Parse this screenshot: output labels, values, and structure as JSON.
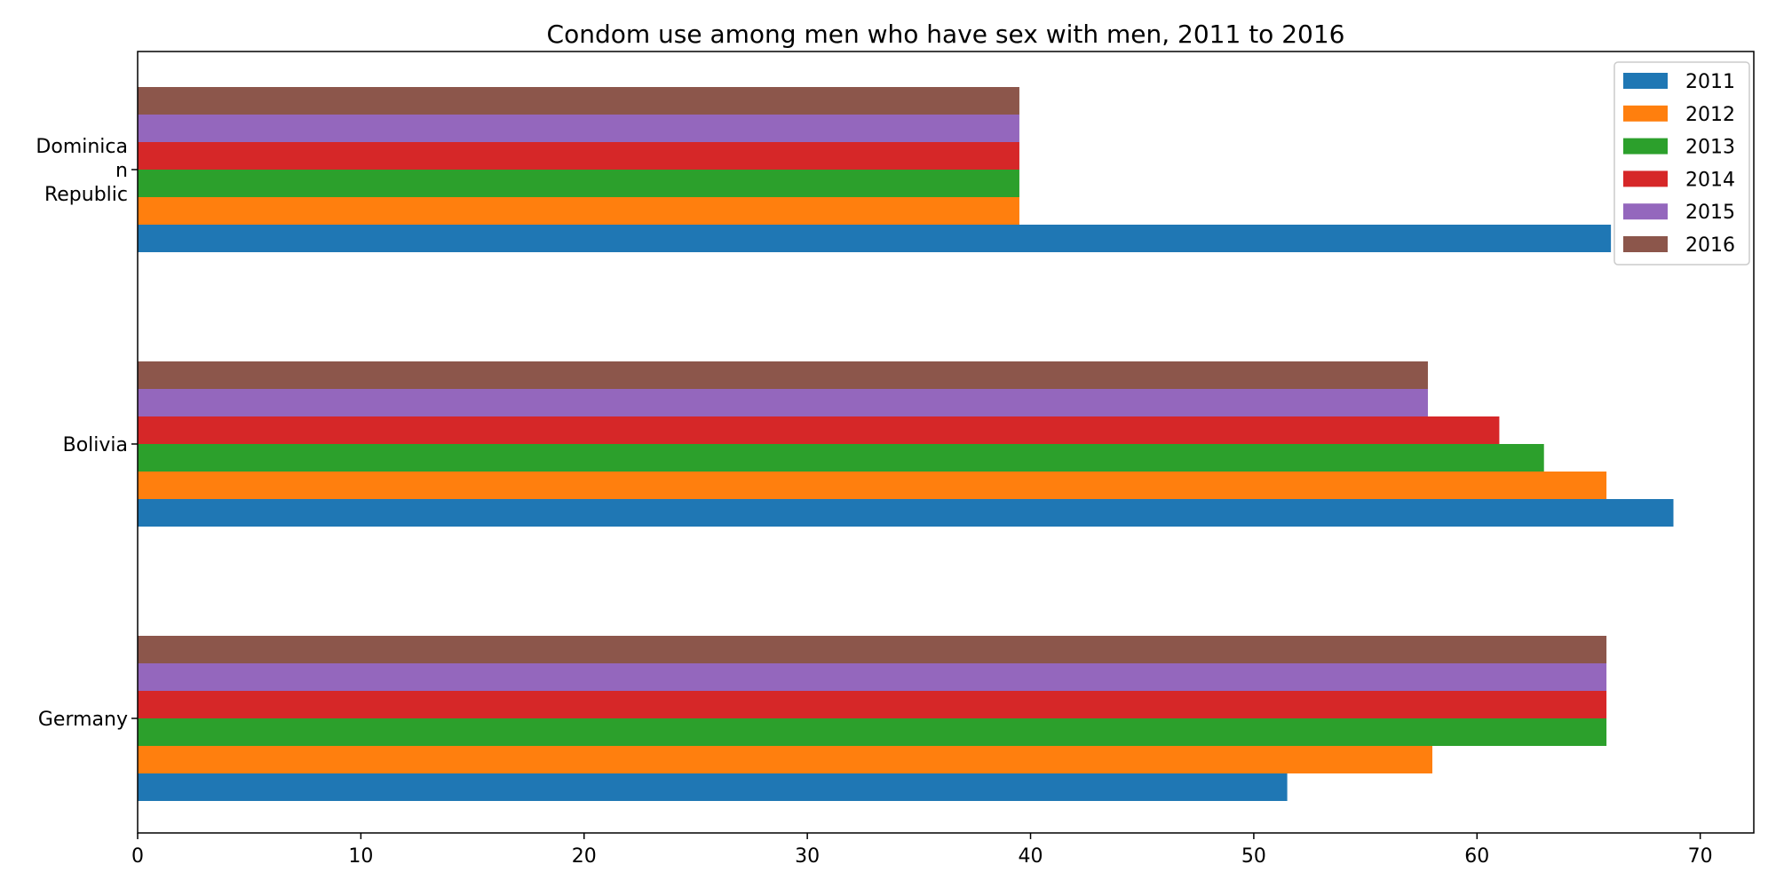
{
  "chart_data": {
    "type": "bar",
    "orientation": "horizontal",
    "title": "Condom use among men who have sex with men, 2011 to 2016",
    "xlabel": "",
    "ylabel": "",
    "categories": [
      "Germany",
      "Bolivia",
      "Dominican Republic"
    ],
    "category_label_lines": [
      [
        "Germany"
      ],
      [
        "Bolivia"
      ],
      [
        "Dominica",
        "n",
        "Republic"
      ]
    ],
    "x_ticks": [
      "0",
      "10",
      "20",
      "30",
      "40",
      "50",
      "60",
      "70"
    ],
    "xlim": [
      0,
      72.4
    ],
    "grid": false,
    "legend_position": "top-right",
    "series": [
      {
        "name": "2011",
        "color": "#1f77b4",
        "values": [
          51.5,
          68.8,
          66.0
        ]
      },
      {
        "name": "2012",
        "color": "#ff7f0e",
        "values": [
          58.0,
          65.8,
          39.5
        ]
      },
      {
        "name": "2013",
        "color": "#2ca02c",
        "values": [
          65.8,
          63.0,
          39.5
        ]
      },
      {
        "name": "2014",
        "color": "#d62728",
        "values": [
          65.8,
          61.0,
          39.5
        ]
      },
      {
        "name": "2015",
        "color": "#9467bd",
        "values": [
          65.8,
          57.8,
          39.5
        ]
      },
      {
        "name": "2016",
        "color": "#8c564b",
        "values": [
          65.8,
          57.8,
          39.5
        ]
      }
    ]
  }
}
